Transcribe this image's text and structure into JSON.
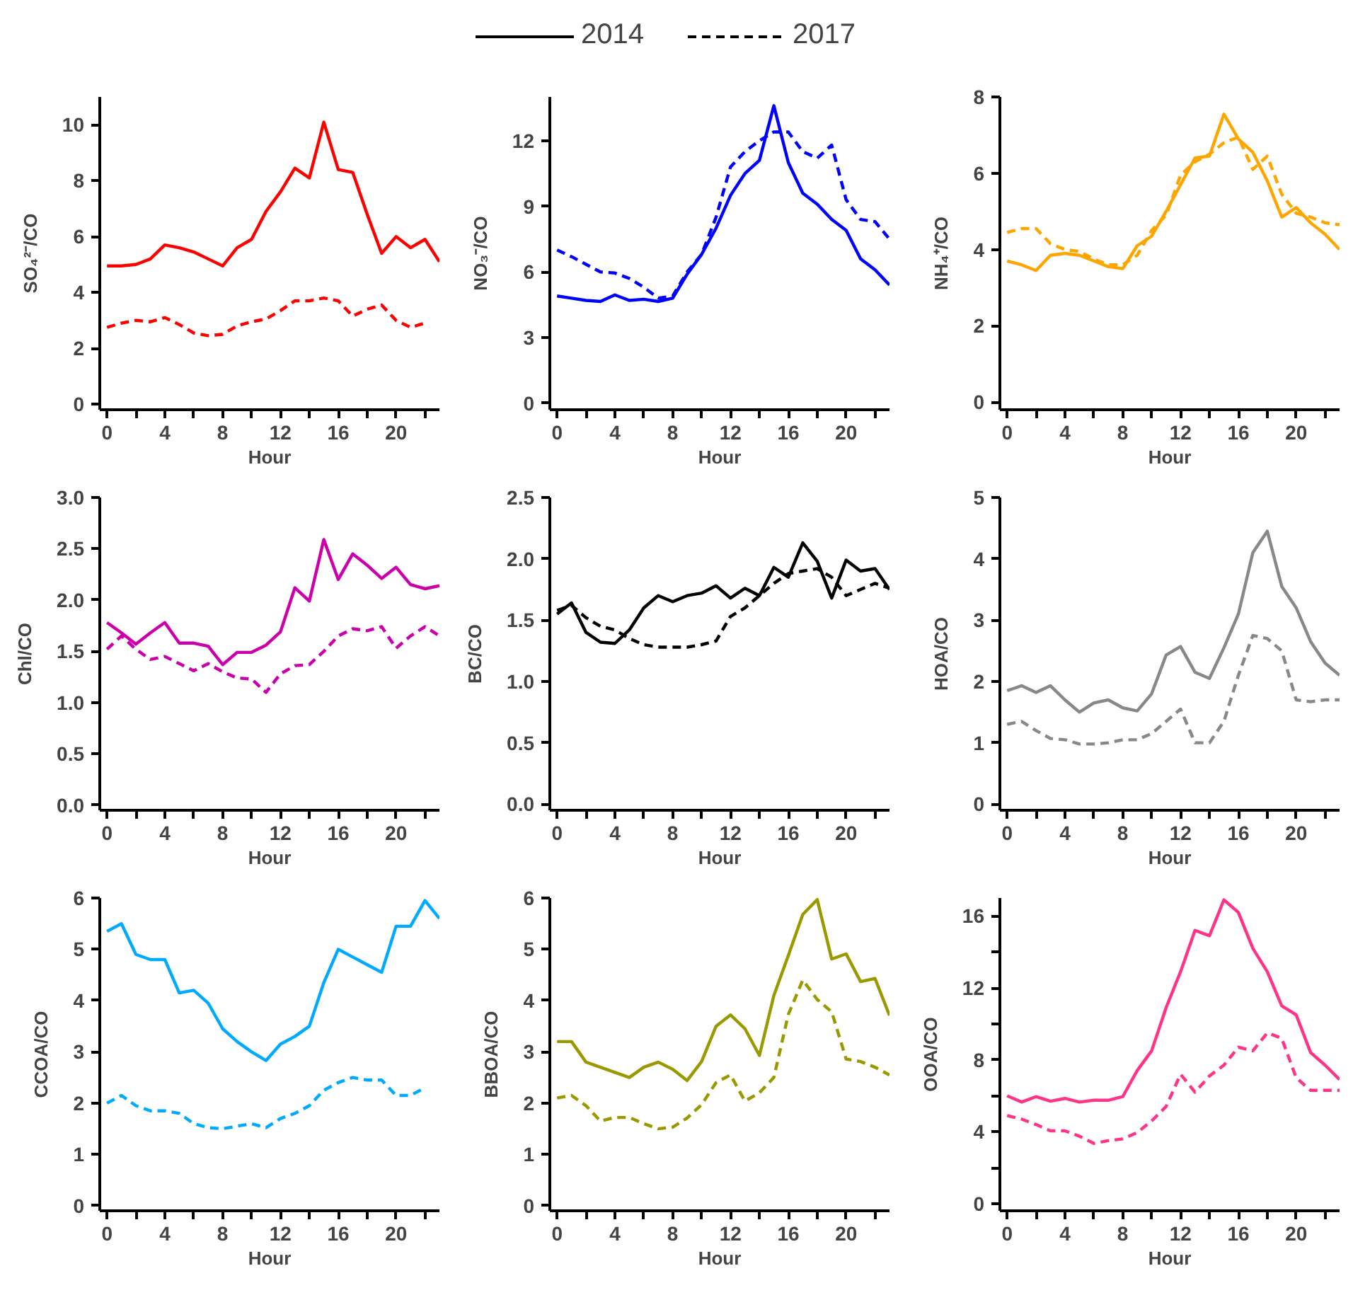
{
  "chart_data": [
    {
      "type": "line",
      "ylabel": "SO₄²⁻/CO",
      "xlabel": "Hour",
      "legend": "top",
      "xlim": [
        -0.5,
        23
      ],
      "xticks": [
        0,
        {
          "value": 2,
          "label": null
        },
        4,
        {
          "value": 6,
          "label": null
        },
        8,
        {
          "value": 10,
          "label": null
        },
        12,
        {
          "value": 14,
          "label": null
        },
        16,
        {
          "value": 18,
          "label": null
        },
        20,
        {
          "value": 22,
          "label": null
        }
      ],
      "ylim": [
        -0.2,
        11
      ],
      "yticks": [
        0,
        2,
        4,
        6,
        8,
        10
      ],
      "x": [
        0,
        1,
        2,
        3,
        4,
        5,
        6,
        7,
        8,
        9,
        10,
        11,
        12,
        13,
        14,
        15,
        16,
        17,
        18,
        19,
        20,
        21,
        22,
        23
      ],
      "series": [
        {
          "name": "2014",
          "color": "#ff0000",
          "line_style": "solid",
          "values": [
            4.95,
            4.95,
            5.0,
            5.2,
            5.7,
            5.6,
            5.45,
            5.2,
            4.95,
            5.6,
            5.9,
            6.9,
            7.6,
            8.45,
            8.1,
            10.1,
            8.4,
            8.3,
            6.8,
            5.4,
            6.0,
            5.6,
            5.9,
            5.1
          ]
        },
        {
          "name": "2017",
          "color": "#ff0000",
          "line_style": "dashed",
          "values": [
            2.75,
            2.9,
            3.0,
            2.95,
            3.1,
            2.85,
            2.55,
            2.45,
            2.5,
            2.8,
            2.95,
            3.05,
            3.35,
            3.7,
            3.7,
            3.8,
            3.7,
            3.15,
            3.4,
            3.55,
            3.0,
            2.75,
            2.9,
            null
          ]
        }
      ]
    },
    {
      "type": "line",
      "ylabel": "NO₃⁻/CO",
      "xlabel": "Hour",
      "xlim": [
        -0.5,
        23
      ],
      "xticks": [
        0,
        {
          "value": 2,
          "label": null
        },
        4,
        {
          "value": 6,
          "label": null
        },
        8,
        {
          "value": 10,
          "label": null
        },
        12,
        {
          "value": 14,
          "label": null
        },
        16,
        {
          "value": 18,
          "label": null
        },
        20,
        {
          "value": 22,
          "label": null
        }
      ],
      "ylim": [
        -0.3,
        14
      ],
      "yticks": [
        0,
        3,
        6,
        9,
        12
      ],
      "x": [
        0,
        1,
        2,
        3,
        4,
        5,
        6,
        7,
        8,
        9,
        10,
        11,
        12,
        13,
        14,
        15,
        16,
        17,
        18,
        19,
        20,
        21,
        22,
        23
      ],
      "series": [
        {
          "color": "#0000ff",
          "line_style": "solid",
          "values": [
            4.9,
            4.8,
            4.7,
            4.65,
            4.95,
            4.7,
            4.75,
            4.65,
            4.8,
            5.9,
            6.8,
            8.0,
            9.5,
            10.5,
            11.1,
            13.6,
            11.0,
            9.6,
            9.1,
            8.4,
            7.9,
            6.6,
            6.1,
            5.4
          ]
        },
        {
          "color": "#0000ff",
          "line_style": "dashed",
          "values": [
            7.0,
            6.7,
            6.35,
            6.0,
            5.95,
            5.7,
            5.3,
            4.8,
            4.9,
            6.0,
            6.8,
            8.5,
            10.8,
            11.5,
            12.0,
            12.4,
            12.4,
            11.5,
            11.2,
            11.8,
            9.3,
            8.4,
            8.3,
            7.5
          ]
        }
      ]
    },
    {
      "type": "line",
      "ylabel": "NH₄⁺/CO",
      "xlabel": "Hour",
      "xlim": [
        -0.5,
        23
      ],
      "xticks": [
        0,
        {
          "value": 2,
          "label": null
        },
        4,
        {
          "value": 6,
          "label": null
        },
        8,
        {
          "value": 10,
          "label": null
        },
        12,
        {
          "value": 14,
          "label": null
        },
        16,
        {
          "value": 18,
          "label": null
        },
        20,
        {
          "value": 22,
          "label": null
        }
      ],
      "ylim": [
        -0.2,
        8
      ],
      "yticks": [
        0,
        2,
        4,
        6,
        8
      ],
      "x": [
        0,
        1,
        2,
        3,
        4,
        5,
        6,
        7,
        8,
        9,
        10,
        11,
        12,
        13,
        14,
        15,
        16,
        17,
        18,
        19,
        20,
        21,
        22,
        23
      ],
      "series": [
        {
          "color": "#ffa500",
          "line_style": "solid",
          "values": [
            3.7,
            3.6,
            3.45,
            3.85,
            3.9,
            3.85,
            3.7,
            3.55,
            3.5,
            4.1,
            4.35,
            5.0,
            5.7,
            6.4,
            6.45,
            7.55,
            6.9,
            6.55,
            5.8,
            4.85,
            5.1,
            4.7,
            4.4,
            4.0
          ]
        },
        {
          "color": "#ffa500",
          "line_style": "dashed",
          "values": [
            4.45,
            4.55,
            4.55,
            4.15,
            4.0,
            3.95,
            3.75,
            3.6,
            3.6,
            3.85,
            4.5,
            4.9,
            5.95,
            6.3,
            6.5,
            6.8,
            6.95,
            6.1,
            6.45,
            5.45,
            4.95,
            4.85,
            4.7,
            4.65
          ]
        }
      ]
    },
    {
      "type": "line",
      "ylabel": "Chl/CO",
      "xlabel": "Hour",
      "xlim": [
        -0.5,
        23
      ],
      "xticks": [
        0,
        {
          "value": 2,
          "label": null
        },
        4,
        {
          "value": 6,
          "label": null
        },
        8,
        {
          "value": 10,
          "label": null
        },
        12,
        {
          "value": 14,
          "label": null
        },
        16,
        {
          "value": 18,
          "label": null
        },
        20,
        {
          "value": 22,
          "label": null
        }
      ],
      "ylim": [
        -0.05,
        3.0
      ],
      "yticks": [
        {
          "value": 0,
          "label": "0.0"
        },
        0.5,
        {
          "value": 1,
          "label": "1.0"
        },
        1.5,
        {
          "value": 2,
          "label": "2.0"
        },
        2.5,
        {
          "value": 3,
          "label": "3.0"
        }
      ],
      "x": [
        0,
        1,
        2,
        3,
        4,
        5,
        6,
        7,
        8,
        9,
        10,
        11,
        12,
        13,
        14,
        15,
        16,
        17,
        18,
        19,
        20,
        21,
        22,
        23
      ],
      "series": [
        {
          "color": "#cc00aa",
          "line_style": "solid",
          "values": [
            1.78,
            1.68,
            1.57,
            1.68,
            1.78,
            1.58,
            1.58,
            1.55,
            1.37,
            1.49,
            1.49,
            1.56,
            1.69,
            2.12,
            1.99,
            2.59,
            2.2,
            2.45,
            2.34,
            2.21,
            2.32,
            2.15,
            2.11,
            2.14
          ]
        },
        {
          "color": "#cc00aa",
          "line_style": "dashed",
          "values": [
            1.52,
            1.65,
            1.52,
            1.42,
            1.45,
            1.38,
            1.31,
            1.38,
            1.3,
            1.24,
            1.23,
            1.1,
            1.28,
            1.36,
            1.37,
            1.5,
            1.65,
            1.72,
            1.7,
            1.74,
            1.53,
            1.65,
            1.74,
            1.65
          ]
        }
      ]
    },
    {
      "type": "line",
      "ylabel": "BC/CO",
      "xlabel": "Hour",
      "xlim": [
        -0.5,
        23
      ],
      "xticks": [
        0,
        {
          "value": 2,
          "label": null
        },
        4,
        {
          "value": 6,
          "label": null
        },
        8,
        {
          "value": 10,
          "label": null
        },
        12,
        {
          "value": 14,
          "label": null
        },
        16,
        {
          "value": 18,
          "label": null
        },
        20,
        {
          "value": 22,
          "label": null
        }
      ],
      "ylim": [
        -0.05,
        2.5
      ],
      "yticks": [
        {
          "value": 0,
          "label": "0.0"
        },
        0.5,
        {
          "value": 1,
          "label": "1.0"
        },
        1.5,
        {
          "value": 2,
          "label": "2.0"
        },
        2.5
      ],
      "x": [
        0,
        1,
        2,
        3,
        4,
        5,
        6,
        7,
        8,
        9,
        10,
        11,
        12,
        13,
        14,
        15,
        16,
        17,
        18,
        19,
        20,
        21,
        22,
        23
      ],
      "series": [
        {
          "color": "#000000",
          "line_style": "solid",
          "values": [
            1.55,
            1.64,
            1.4,
            1.32,
            1.31,
            1.42,
            1.6,
            1.7,
            1.65,
            1.7,
            1.72,
            1.78,
            1.68,
            1.76,
            1.7,
            1.93,
            1.85,
            2.13,
            1.98,
            1.68,
            1.99,
            1.9,
            1.92,
            1.75
          ]
        },
        {
          "color": "#000000",
          "line_style": "dashed",
          "values": [
            1.58,
            1.62,
            1.52,
            1.45,
            1.42,
            1.35,
            1.3,
            1.28,
            1.28,
            1.28,
            1.3,
            1.33,
            1.53,
            1.6,
            1.7,
            1.8,
            1.88,
            1.9,
            1.92,
            1.85,
            1.7,
            1.75,
            1.8,
            1.76
          ]
        }
      ]
    },
    {
      "type": "line",
      "ylabel": "HOA/CO",
      "xlabel": "Hour",
      "xlim": [
        -0.5,
        23
      ],
      "xticks": [
        0,
        {
          "value": 2,
          "label": null
        },
        4,
        {
          "value": 6,
          "label": null
        },
        8,
        {
          "value": 10,
          "label": null
        },
        12,
        {
          "value": 14,
          "label": null
        },
        16,
        {
          "value": 18,
          "label": null
        },
        20,
        {
          "value": 22,
          "label": null
        }
      ],
      "ylim": [
        -0.1,
        5
      ],
      "yticks": [
        0,
        1,
        2,
        3,
        4,
        5
      ],
      "x": [
        0,
        1,
        2,
        3,
        4,
        5,
        6,
        7,
        8,
        9,
        10,
        11,
        12,
        13,
        14,
        15,
        16,
        17,
        18,
        19,
        20,
        21,
        22,
        23
      ],
      "series": [
        {
          "color": "#888888",
          "line_style": "solid",
          "values": [
            1.85,
            1.93,
            1.82,
            1.93,
            1.7,
            1.5,
            1.65,
            1.7,
            1.57,
            1.52,
            1.8,
            2.43,
            2.57,
            2.15,
            2.05,
            2.55,
            3.1,
            4.1,
            4.45,
            3.55,
            3.2,
            2.65,
            2.3,
            2.1
          ]
        },
        {
          "color": "#888888",
          "line_style": "dashed",
          "values": [
            1.3,
            1.35,
            1.2,
            1.07,
            1.05,
            0.98,
            0.98,
            1.0,
            1.05,
            1.05,
            1.15,
            1.35,
            1.55,
            1.0,
            1.0,
            1.35,
            2.1,
            2.75,
            2.7,
            2.5,
            1.7,
            1.67,
            1.7,
            1.7
          ]
        }
      ]
    },
    {
      "type": "line",
      "ylabel": "CCOA/CO",
      "xlabel": "Hour",
      "xlim": [
        -0.5,
        23
      ],
      "xticks": [
        0,
        {
          "value": 2,
          "label": null
        },
        4,
        {
          "value": 6,
          "label": null
        },
        8,
        {
          "value": 10,
          "label": null
        },
        12,
        {
          "value": 14,
          "label": null
        },
        16,
        {
          "value": 18,
          "label": null
        },
        20,
        {
          "value": 22,
          "label": null
        }
      ],
      "ylim": [
        -0.1,
        6
      ],
      "yticks": [
        0,
        1,
        2,
        3,
        4,
        5,
        6
      ],
      "x": [
        0,
        1,
        2,
        3,
        4,
        5,
        6,
        7,
        8,
        9,
        10,
        11,
        12,
        13,
        14,
        15,
        16,
        17,
        18,
        19,
        20,
        21,
        22,
        23
      ],
      "series": [
        {
          "color": "#00aaff",
          "line_style": "solid",
          "values": [
            5.35,
            5.5,
            4.9,
            4.8,
            4.8,
            4.15,
            4.2,
            3.95,
            3.45,
            3.2,
            3.0,
            2.83,
            3.15,
            3.3,
            3.5,
            4.35,
            5.0,
            4.85,
            4.7,
            4.55,
            5.45,
            5.45,
            5.95,
            5.6
          ]
        },
        {
          "color": "#00aaff",
          "line_style": "dashed",
          "values": [
            2.0,
            2.15,
            1.95,
            1.85,
            1.85,
            1.8,
            1.6,
            1.52,
            1.5,
            1.55,
            1.6,
            1.52,
            1.7,
            1.8,
            1.95,
            2.25,
            2.4,
            2.5,
            2.45,
            2.45,
            2.15,
            2.15,
            2.3,
            null
          ]
        }
      ]
    },
    {
      "type": "line",
      "ylabel": "BBOA/CO",
      "xlabel": "Hour",
      "xlim": [
        -0.5,
        23
      ],
      "xticks": [
        0,
        {
          "value": 2,
          "label": null
        },
        4,
        {
          "value": 6,
          "label": null
        },
        8,
        {
          "value": 10,
          "label": null
        },
        12,
        {
          "value": 14,
          "label": null
        },
        16,
        {
          "value": 18,
          "label": null
        },
        20,
        {
          "value": 22,
          "label": null
        }
      ],
      "ylim": [
        -0.1,
        6
      ],
      "yticks": [
        0,
        1,
        2,
        3,
        4,
        5,
        6
      ],
      "x": [
        0,
        1,
        2,
        3,
        4,
        5,
        6,
        7,
        8,
        9,
        10,
        11,
        12,
        13,
        14,
        15,
        16,
        17,
        18,
        19,
        20,
        21,
        22,
        23
      ],
      "series": [
        {
          "color": "#999900",
          "line_style": "solid",
          "values": [
            3.2,
            3.2,
            2.8,
            2.7,
            2.6,
            2.5,
            2.7,
            2.8,
            2.66,
            2.44,
            2.81,
            3.5,
            3.72,
            3.45,
            2.93,
            4.1,
            4.88,
            5.68,
            5.97,
            4.81,
            4.91,
            4.37,
            4.43,
            3.71
          ]
        },
        {
          "color": "#999900",
          "line_style": "dashed",
          "values": [
            2.1,
            2.15,
            1.95,
            1.65,
            1.72,
            1.72,
            1.6,
            1.5,
            1.53,
            1.71,
            1.97,
            2.4,
            2.55,
            2.04,
            2.2,
            2.5,
            3.73,
            4.4,
            4.02,
            3.78,
            2.86,
            2.81,
            2.7,
            2.55
          ]
        }
      ]
    },
    {
      "type": "line",
      "ylabel": "OOA/CO",
      "xlabel": "Hour",
      "xlim": [
        -0.5,
        23
      ],
      "xticks": [
        0,
        {
          "value": 2,
          "label": null
        },
        4,
        {
          "value": 6,
          "label": null
        },
        8,
        {
          "value": 10,
          "label": null
        },
        12,
        {
          "value": 14,
          "label": null
        },
        16,
        {
          "value": 18,
          "label": null
        },
        20,
        {
          "value": 22,
          "label": null
        }
      ],
      "ylim": [
        -0.4,
        17
      ],
      "yticks": [
        0,
        {
          "value": 2,
          "label": null
        },
        4,
        {
          "value": 6,
          "label": null
        },
        8,
        {
          "value": 10,
          "label": null
        },
        12,
        {
          "value": 14,
          "label": null
        },
        16
      ],
      "x": [
        0,
        1,
        2,
        3,
        4,
        5,
        6,
        7,
        8,
        9,
        10,
        11,
        12,
        13,
        14,
        15,
        16,
        17,
        18,
        19,
        20,
        21,
        22,
        23
      ],
      "series": [
        {
          "color": "#ff3388",
          "line_style": "solid",
          "values": [
            6.0,
            5.65,
            5.95,
            5.7,
            5.85,
            5.65,
            5.75,
            5.75,
            5.95,
            7.4,
            8.5,
            10.9,
            12.9,
            15.2,
            14.9,
            16.9,
            16.2,
            14.2,
            12.9,
            11.0,
            10.5,
            8.4,
            7.7,
            6.9
          ]
        },
        {
          "color": "#ff3388",
          "line_style": "dashed",
          "values": [
            4.9,
            4.7,
            4.4,
            4.05,
            4.05,
            3.75,
            3.35,
            3.5,
            3.6,
            3.95,
            4.6,
            5.4,
            7.2,
            6.2,
            7.1,
            7.7,
            8.7,
            8.5,
            9.5,
            9.2,
            7.0,
            6.3,
            6.3,
            6.3
          ]
        }
      ]
    }
  ]
}
